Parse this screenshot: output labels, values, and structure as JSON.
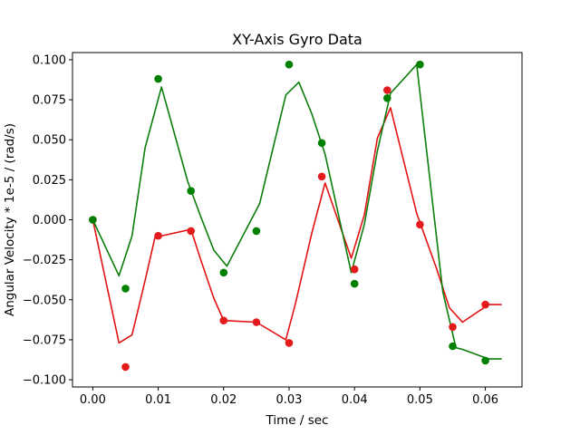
{
  "chart_data": {
    "type": "line",
    "title": "XY-Axis Gyro Data",
    "xlabel": "Time / sec",
    "ylabel": "Angular Velocity * 1e-5 / (rad/s)",
    "xlim": [
      -0.0031,
      0.0656
    ],
    "ylim": [
      -0.1045,
      0.1045
    ],
    "xticks": [
      0.0,
      0.01,
      0.02,
      0.03,
      0.04,
      0.05,
      0.06
    ],
    "xtick_labels": [
      "0.00",
      "0.01",
      "0.02",
      "0.03",
      "0.04",
      "0.05",
      "0.06"
    ],
    "yticks": [
      -0.1,
      -0.075,
      -0.05,
      -0.025,
      0.0,
      0.025,
      0.05,
      0.075,
      0.1
    ],
    "ytick_labels": [
      "−0.100",
      "−0.075",
      "−0.050",
      "−0.025",
      "0.000",
      "0.025",
      "0.050",
      "0.075",
      "0.100"
    ],
    "grid": false,
    "series": [
      {
        "color": "#e41a1c",
        "line_color": "#e31212",
        "line": {
          "x": [
            0.0,
            0.004,
            0.006,
            0.008,
            0.0095,
            0.015,
            0.0165,
            0.0185,
            0.02,
            0.025,
            0.0295,
            0.031,
            0.0335,
            0.0355,
            0.0395,
            0.0415,
            0.0435,
            0.0455,
            0.0495,
            0.0525,
            0.0545,
            0.0565,
            0.0605,
            0.0625
          ],
          "y": [
            0.0,
            -0.077,
            -0.072,
            -0.038,
            -0.011,
            -0.006,
            -0.025,
            -0.049,
            -0.063,
            -0.064,
            -0.075,
            -0.052,
            -0.008,
            0.023,
            -0.024,
            0.003,
            0.051,
            0.07,
            0.004,
            -0.03,
            -0.055,
            -0.064,
            -0.053,
            -0.053
          ]
        },
        "points": {
          "x": [
            0.0,
            0.005,
            0.01,
            0.015,
            0.02,
            0.025,
            0.03,
            0.035,
            0.04,
            0.045,
            0.05,
            0.055,
            0.06
          ],
          "y": [
            0.0,
            -0.092,
            -0.01,
            -0.007,
            -0.063,
            -0.064,
            -0.077,
            0.027,
            -0.031,
            0.081,
            -0.003,
            -0.067,
            -0.053
          ]
        }
      },
      {
        "color": "#008000",
        "line_color": "#0b7d0b",
        "line": {
          "x": [
            0.0,
            0.004,
            0.006,
            0.008,
            0.0105,
            0.0145,
            0.0165,
            0.0185,
            0.0205,
            0.0255,
            0.0295,
            0.0315,
            0.0335,
            0.0355,
            0.0395,
            0.0415,
            0.0435,
            0.0455,
            0.0495,
            0.0535,
            0.0555,
            0.0565,
            0.0605,
            0.0625
          ],
          "y": [
            0.0,
            -0.035,
            -0.01,
            0.045,
            0.083,
            0.024,
            0.002,
            -0.019,
            -0.029,
            0.01,
            0.078,
            0.086,
            0.066,
            0.041,
            -0.033,
            -0.003,
            0.043,
            0.079,
            0.097,
            -0.045,
            -0.08,
            -0.081,
            -0.087,
            -0.087
          ]
        },
        "points": {
          "x": [
            0.0,
            0.005,
            0.01,
            0.015,
            0.02,
            0.025,
            0.03,
            0.035,
            0.04,
            0.045,
            0.05,
            0.055,
            0.06
          ],
          "y": [
            0.0,
            -0.043,
            0.088,
            0.018,
            -0.033,
            -0.007,
            0.097,
            0.048,
            -0.04,
            0.076,
            0.097,
            -0.079,
            -0.088
          ]
        }
      }
    ]
  }
}
